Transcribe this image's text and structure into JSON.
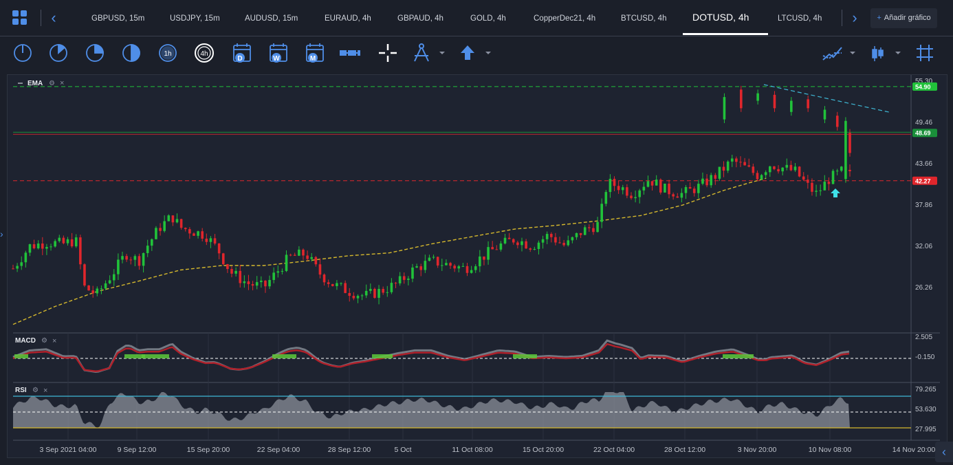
{
  "tabs": [
    {
      "label": "GBPUSD, 15m",
      "active": false
    },
    {
      "label": "USDJPY, 15m",
      "active": false
    },
    {
      "label": "AUDUSD, 15m",
      "active": false
    },
    {
      "label": "EURAUD, 4h",
      "active": false
    },
    {
      "label": "GBPAUD, 4h",
      "active": false
    },
    {
      "label": "GOLD, 4h",
      "active": false
    },
    {
      "label": "CopperDec21, 4h",
      "active": false
    },
    {
      "label": "BTCUSD, 4h",
      "active": false
    },
    {
      "label": "DOTUSD, 4h",
      "active": true
    },
    {
      "label": "LTCUSD, 4h",
      "active": false
    }
  ],
  "add_chart_label": "Añadir gráfico",
  "toolbar": {
    "icons": [
      "clock-1m-icon",
      "clock-15m-icon",
      "clock-30m-icon",
      "clock-1h-half-icon",
      "timeframe-1h-icon",
      "timeframe-4h-icon",
      "calendar-daily-icon",
      "calendar-weekly-icon",
      "calendar-monthly-icon",
      "ruler-icon",
      "crosshair-icon",
      "compass-drawing-icon",
      "arrow-up-icon",
      "indicator-chart-icon",
      "candlestick-type-icon",
      "grid-icon"
    ],
    "tf_1h": "1h",
    "tf_4h": "4h",
    "cal_d": "D",
    "cal_w": "W",
    "cal_m": "M"
  },
  "chart": {
    "main_indicator": "EMA",
    "macd_label": "MACD",
    "rsi_label": "RSI",
    "price_ticks": [
      "55.30",
      "49.46",
      "43.66",
      "37.86",
      "32.06",
      "26.26"
    ],
    "price_tags": [
      {
        "value": "54.90",
        "color": "#21c23a"
      },
      {
        "value": "48.69",
        "color": "#1a8f3a"
      },
      {
        "value": "42.27",
        "color": "#e0262c"
      }
    ],
    "macd_ticks": [
      "2.505",
      "-0.150"
    ],
    "rsi_ticks": [
      "79.265",
      "53.630",
      "27.995"
    ],
    "time_labels": [
      "3 Sep 2021 04:00",
      "9 Sep 12:00",
      "15 Sep 20:00",
      "22 Sep 04:00",
      "28 Sep 12:00",
      "5 Oct",
      "11 Oct 08:00",
      "15 Oct 20:00",
      "22 Oct 04:00",
      "28 Oct 12:00",
      "3 Nov 20:00",
      "10 Nov 08:00",
      "14 Nov 20:00"
    ],
    "colors": {
      "up": "#21c23a",
      "down": "#e0262c",
      "ema": "#d6b92d",
      "trend": "#3fb9d6",
      "rsi_upper": "#3fb9d6",
      "rsi_lower": "#d6b92d"
    }
  },
  "chart_data": {
    "type": "candlestick",
    "levels": {
      "resistance": 54.9,
      "current": 48.69,
      "support": 42.27
    },
    "price_range": [
      22.5,
      56.0
    ],
    "ema_points": [
      [
        0,
        23
      ],
      [
        0.05,
        25.4
      ],
      [
        0.1,
        27.4
      ],
      [
        0.15,
        28.8
      ],
      [
        0.2,
        30.3
      ],
      [
        0.25,
        30.9
      ],
      [
        0.3,
        30.9
      ],
      [
        0.35,
        31.5
      ],
      [
        0.4,
        32.2
      ],
      [
        0.45,
        32.6
      ],
      [
        0.5,
        33.8
      ],
      [
        0.55,
        34.8
      ],
      [
        0.6,
        35.8
      ],
      [
        0.65,
        36.3
      ],
      [
        0.7,
        36.9
      ],
      [
        0.75,
        37.6
      ],
      [
        0.8,
        39.0
      ],
      [
        0.85,
        41.0
      ],
      [
        0.88,
        42.0
      ],
      [
        0.9,
        42.6
      ]
    ],
    "close_points": [
      [
        0,
        30.5
      ],
      [
        0.02,
        33.5
      ],
      [
        0.04,
        34.0
      ],
      [
        0.06,
        33.8
      ],
      [
        0.075,
        34.3
      ],
      [
        0.085,
        28.0
      ],
      [
        0.1,
        27.0
      ],
      [
        0.12,
        30.0
      ],
      [
        0.135,
        32.5
      ],
      [
        0.15,
        31.5
      ],
      [
        0.16,
        33.5
      ],
      [
        0.175,
        36.0
      ],
      [
        0.19,
        37.5
      ],
      [
        0.2,
        36.0
      ],
      [
        0.215,
        35.5
      ],
      [
        0.23,
        35.0
      ],
      [
        0.245,
        33.0
      ],
      [
        0.26,
        30.0
      ],
      [
        0.28,
        28.5
      ],
      [
        0.3,
        28.0
      ],
      [
        0.315,
        30.0
      ],
      [
        0.33,
        32.0
      ],
      [
        0.35,
        32.5
      ],
      [
        0.365,
        30.0
      ],
      [
        0.38,
        28.5
      ],
      [
        0.4,
        27.5
      ],
      [
        0.42,
        26.8
      ],
      [
        0.44,
        27.5
      ],
      [
        0.46,
        28.5
      ],
      [
        0.48,
        30.5
      ],
      [
        0.5,
        31.5
      ],
      [
        0.52,
        31.0
      ],
      [
        0.54,
        30.5
      ],
      [
        0.56,
        32.0
      ],
      [
        0.58,
        33.5
      ],
      [
        0.6,
        34.5
      ],
      [
        0.62,
        33.5
      ],
      [
        0.64,
        35.0
      ],
      [
        0.66,
        33.5
      ],
      [
        0.68,
        35.5
      ],
      [
        0.7,
        36.5
      ],
      [
        0.71,
        42.0
      ],
      [
        0.725,
        41.5
      ],
      [
        0.74,
        40.5
      ],
      [
        0.76,
        42.5
      ],
      [
        0.78,
        41.0
      ],
      [
        0.8,
        40.5
      ],
      [
        0.82,
        41.5
      ],
      [
        0.84,
        43.0
      ],
      [
        0.86,
        45.0
      ],
      [
        0.875,
        44.0
      ],
      [
        0.89,
        43.0
      ],
      [
        0.905,
        44.5
      ],
      [
        0.92,
        44.0
      ],
      [
        0.935,
        43.5
      ],
      [
        0.95,
        41.5
      ],
      [
        0.96,
        40.5
      ],
      [
        0.975,
        42.5
      ],
      [
        0.99,
        43.5
      ],
      [
        1.0,
        43.0
      ]
    ],
    "macd_ticks": [
      2.505,
      -0.15
    ],
    "rsi_levels": [
      79.265,
      53.63,
      27.995
    ]
  }
}
